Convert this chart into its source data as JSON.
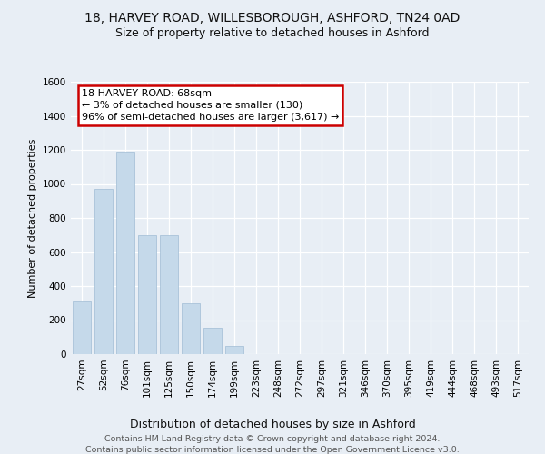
{
  "title1": "18, HARVEY ROAD, WILLESBOROUGH, ASHFORD, TN24 0AD",
  "title2": "Size of property relative to detached houses in Ashford",
  "xlabel": "Distribution of detached houses by size in Ashford",
  "ylabel": "Number of detached properties",
  "categories": [
    "27sqm",
    "52sqm",
    "76sqm",
    "101sqm",
    "125sqm",
    "150sqm",
    "174sqm",
    "199sqm",
    "223sqm",
    "248sqm",
    "272sqm",
    "297sqm",
    "321sqm",
    "346sqm",
    "370sqm",
    "395sqm",
    "419sqm",
    "444sqm",
    "468sqm",
    "493sqm",
    "517sqm"
  ],
  "values": [
    310,
    970,
    1190,
    700,
    700,
    300,
    155,
    50,
    0,
    0,
    0,
    0,
    0,
    0,
    0,
    0,
    0,
    0,
    0,
    0,
    0
  ],
  "bar_color": "#c5d9ea",
  "bar_edge_color": "#a0bcd4",
  "annotation_box_text": "18 HARVEY ROAD: 68sqm\n← 3% of detached houses are smaller (130)\n96% of semi-detached houses are larger (3,617) →",
  "annotation_box_color": "#ffffff",
  "annotation_box_edge_color": "#cc0000",
  "ylim": [
    0,
    1600
  ],
  "yticks": [
    0,
    200,
    400,
    600,
    800,
    1000,
    1200,
    1400,
    1600
  ],
  "bg_color": "#e8eef5",
  "plot_bg_color": "#e8eef5",
  "grid_color": "#ffffff",
  "footnote1": "Contains HM Land Registry data © Crown copyright and database right 2024.",
  "footnote2": "Contains public sector information licensed under the Open Government Licence v3.0.",
  "title1_fontsize": 10,
  "title2_fontsize": 9,
  "xlabel_fontsize": 9,
  "ylabel_fontsize": 8,
  "tick_fontsize": 7.5,
  "footnote_fontsize": 6.8,
  "ann_fontsize": 8
}
